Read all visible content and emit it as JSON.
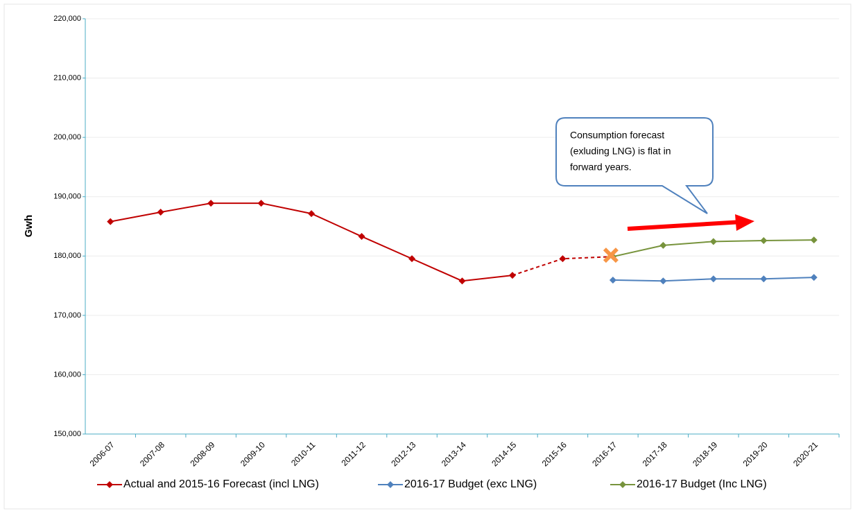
{
  "chart_data": {
    "type": "line",
    "y_label": "Gwh",
    "categories": [
      "2006-07",
      "2007-08",
      "2008-09",
      "2009-10",
      "2010-11",
      "2011-12",
      "2012-13",
      "2013-14",
      "2014-15",
      "2015-16",
      "2016-17",
      "2017-18",
      "2018-19",
      "2019-20",
      "2020-21"
    ],
    "series": [
      {
        "name": "Actual and 2015-16 Forecast  (incl LNG)",
        "color": "#c00000",
        "dash_start_index": 8,
        "values": [
          185800,
          187400,
          188900,
          188900,
          187150,
          183300,
          179550,
          175800,
          176750,
          179550,
          179900,
          null,
          null,
          null,
          null
        ]
      },
      {
        "name": "2016-17 Budget (exc LNG)",
        "color": "#4f81bd",
        "values": [
          null,
          null,
          null,
          null,
          null,
          null,
          null,
          null,
          null,
          null,
          175950,
          175800,
          176150,
          176150,
          176400
        ]
      },
      {
        "name": "2016-17 Budget (Inc LNG)",
        "color": "#77933c",
        "values": [
          null,
          null,
          null,
          null,
          null,
          null,
          null,
          null,
          null,
          null,
          179900,
          181800,
          182450,
          182600,
          182700
        ]
      }
    ],
    "ylim": [
      150000,
      220000
    ],
    "yticks": [
      {
        "value": 150000,
        "label": "150,000"
      },
      {
        "value": 160000,
        "label": "160,000"
      },
      {
        "value": 170000,
        "label": "170,000"
      },
      {
        "value": 180000,
        "label": "180,000"
      },
      {
        "value": 190000,
        "label": "190,000"
      },
      {
        "value": 200000,
        "label": "200,000"
      },
      {
        "value": 210000,
        "label": "210,000"
      },
      {
        "value": 220000,
        "label": "220,000"
      }
    ],
    "grid": true,
    "legend": "bottom",
    "annotation": [
      "Consumption forecast",
      "(exluding LNG) is flat in",
      "forward years."
    ]
  }
}
